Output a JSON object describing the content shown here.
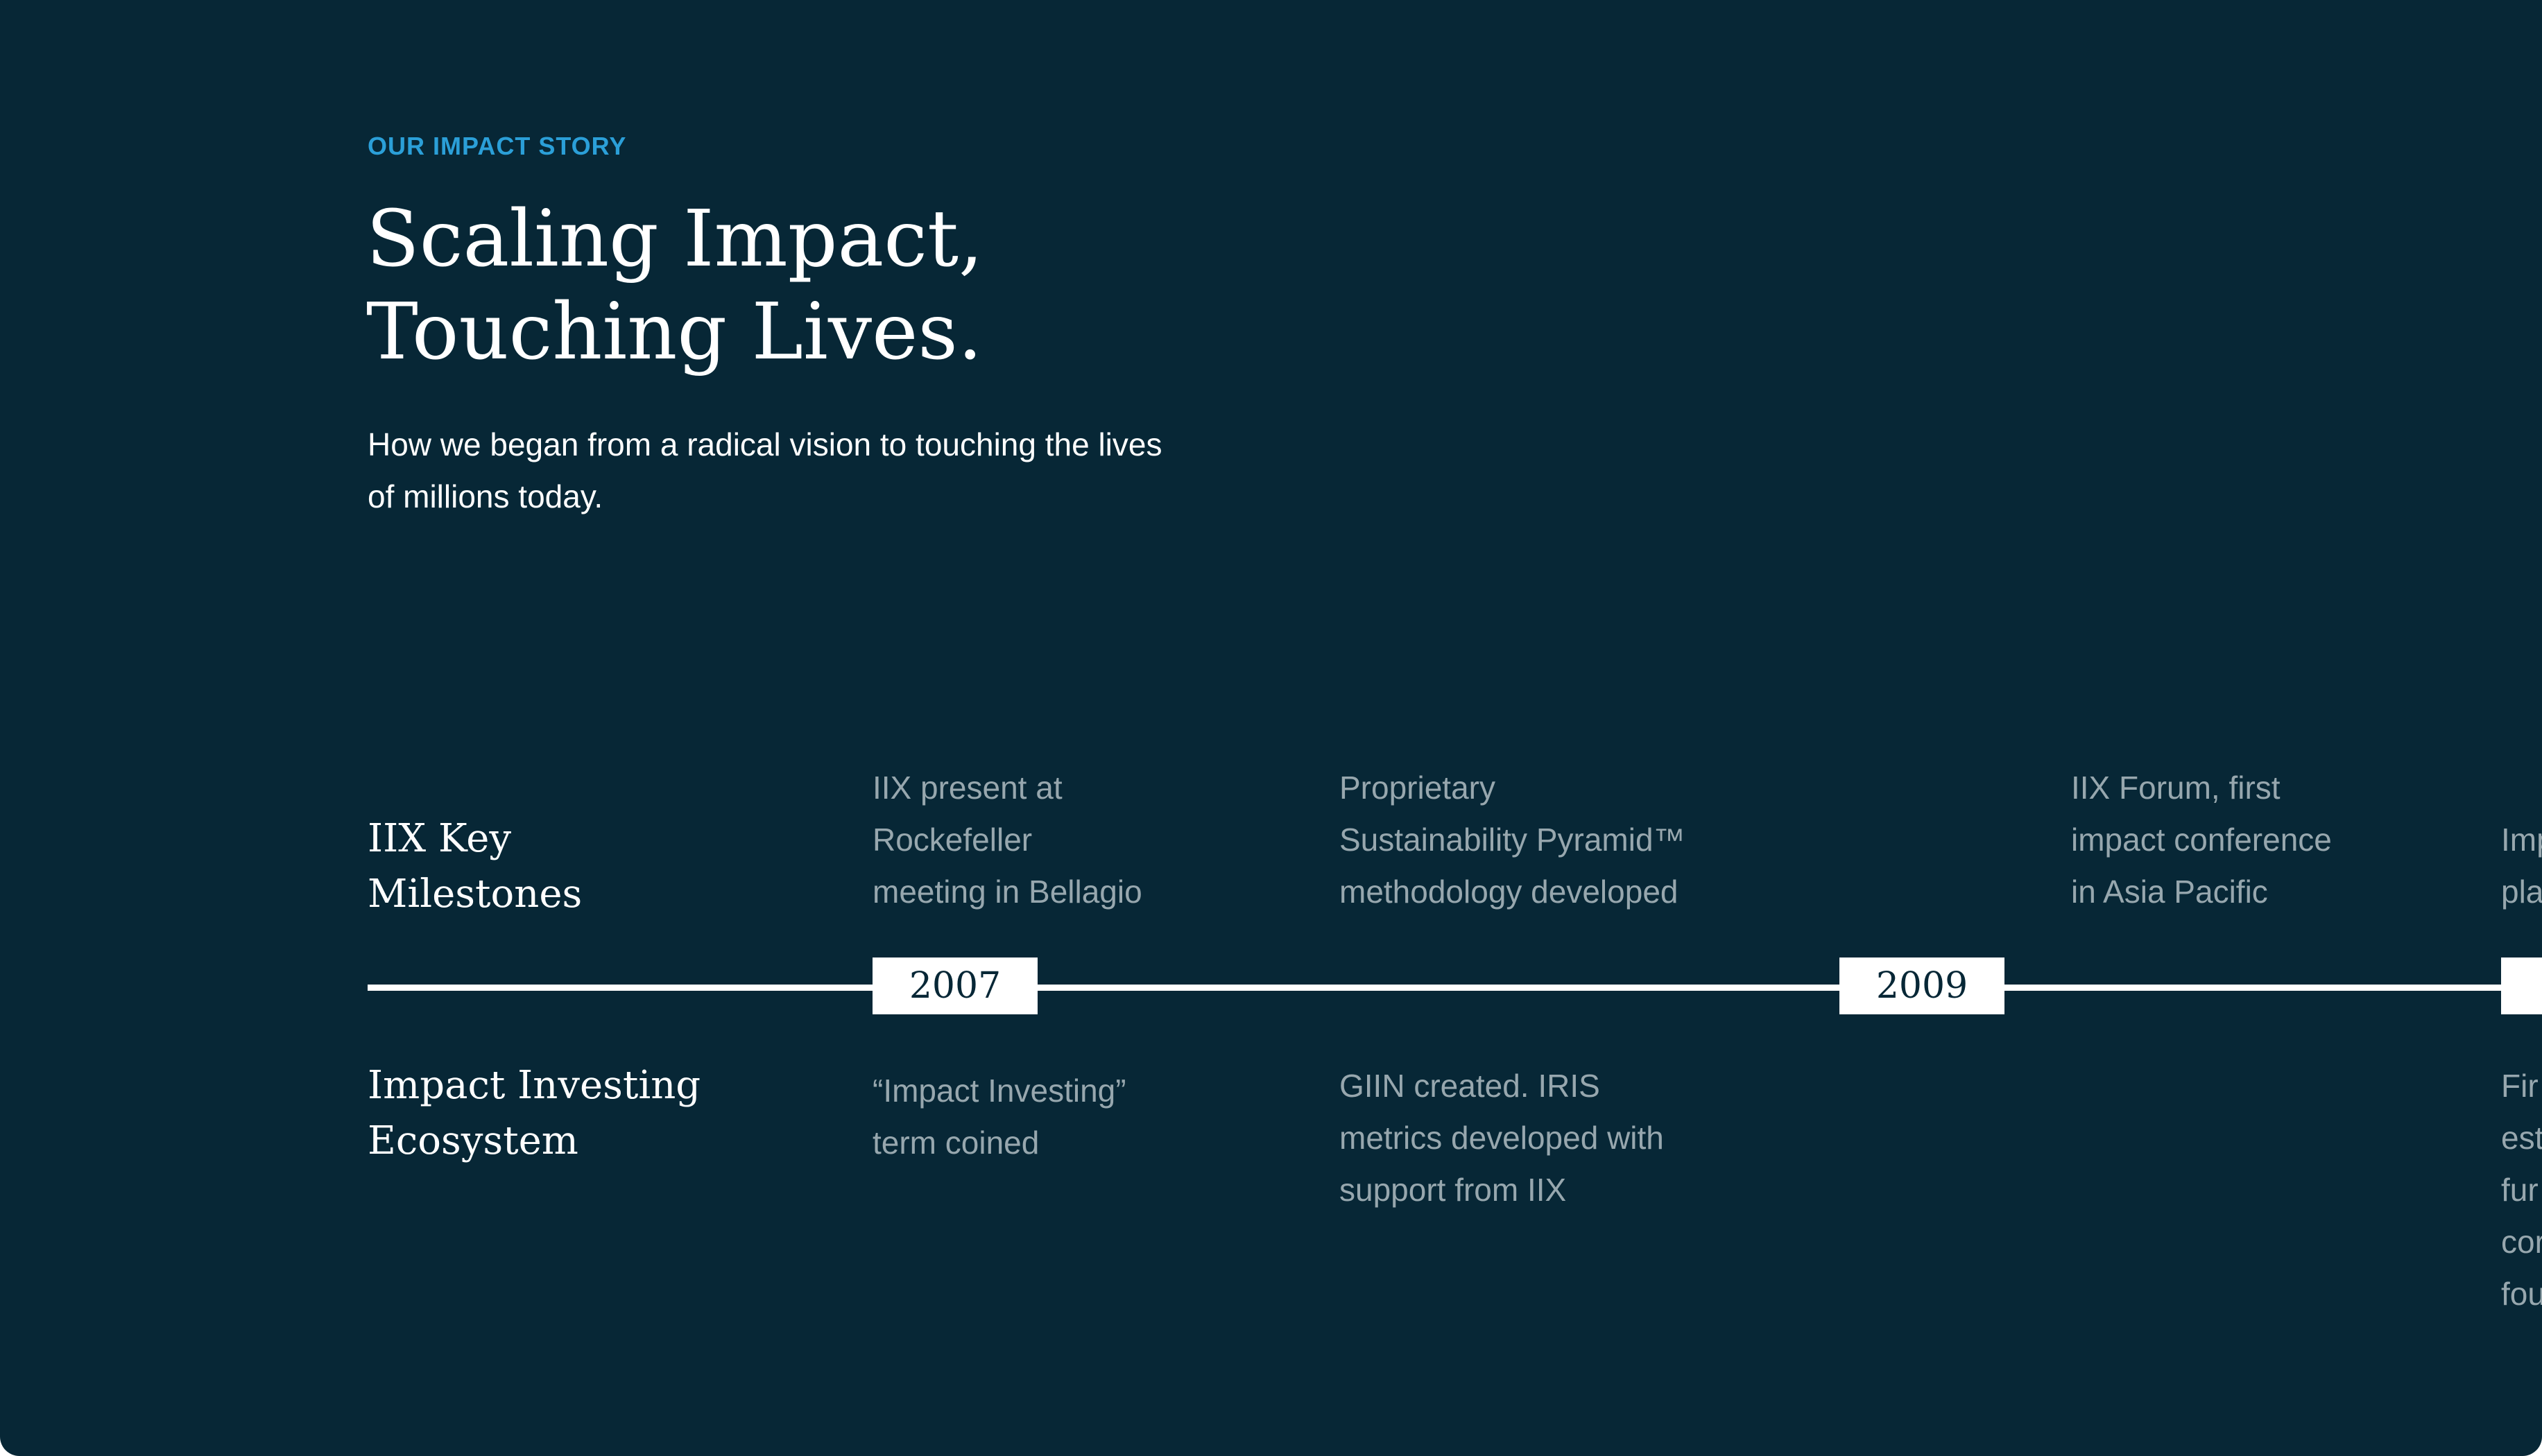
{
  "header": {
    "eyebrow": "OUR IMPACT STORY",
    "title": "Scaling Impact,\nTouching Lives.",
    "subtitle": "How we began from a radical vision to touching the lives of millions today."
  },
  "timeline": {
    "top_label": "IIX Key\nMilestones",
    "bottom_label": "Impact Investing\nEcosystem",
    "years": [
      "2007",
      "2009",
      ""
    ],
    "milestones": [
      "IIX present at\nRockefeller\nmeeting in Bellagio",
      "Proprietary\nSustainability Pyramid™\nmethodology developed",
      "IIX Forum, first\nimpact conference\nin Asia Pacific",
      "Imp\npla"
    ],
    "ecosystem": [
      "“Impact Investing”\nterm coined",
      "GIIN created. IRIS\nmetrics developed with\nsupport from IIX",
      "Fir\nest\nfur\ncor\nfou"
    ]
  }
}
